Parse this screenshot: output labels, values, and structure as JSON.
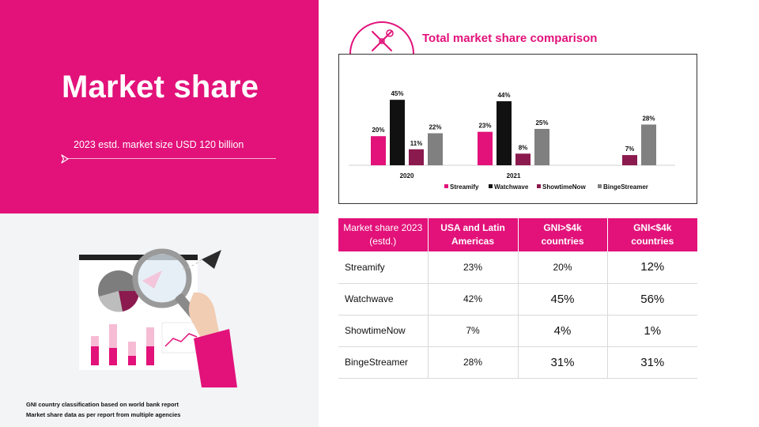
{
  "hero": {
    "title": "Market share",
    "subtitle": "2023 estd. market size USD 120 billion"
  },
  "footnotes": [
    "GNI country classification based on world bank report",
    "Market share data as per report from multiple agencies"
  ],
  "colors": {
    "accent": "#e2127a",
    "streamify": "#e2127a",
    "watchwave": "#111111",
    "showtimenow": "#8b1a4e",
    "bingestreamer": "#808080"
  },
  "icons": {
    "badge": "tools-icon"
  },
  "chart_data": {
    "type": "bar",
    "title": "Total market share comparison",
    "categories": [
      "2020",
      "2021",
      ""
    ],
    "series": [
      {
        "name": "Streamify",
        "color": "#e2127a",
        "values": [
          20,
          23,
          null
        ],
        "labels": [
          "20%",
          "23%",
          ""
        ]
      },
      {
        "name": "Watchwave",
        "color": "#111111",
        "values": [
          45,
          44,
          null
        ],
        "labels": [
          "45%",
          "44%",
          ""
        ]
      },
      {
        "name": "ShowtimeNow",
        "color": "#8b1a4e",
        "values": [
          11,
          8,
          7
        ],
        "labels": [
          "11%",
          "8%",
          "7%"
        ]
      },
      {
        "name": "BingeStreamer",
        "color": "#808080",
        "values": [
          22,
          25,
          28
        ],
        "labels": [
          "22%",
          "25%",
          "28%"
        ]
      }
    ],
    "ylim": [
      0,
      50
    ],
    "grid": false,
    "legend": "bottom"
  },
  "table": {
    "headers": [
      "Market share 2023 (estd.)",
      "USA and Latin Americas",
      "GNI>$4k countries",
      "GNI<$4k countries"
    ],
    "rows": [
      [
        "Streamify",
        "23%",
        "20%",
        "12%"
      ],
      [
        "Watchwave",
        "42%",
        "45%",
        "56%"
      ],
      [
        "ShowtimeNow",
        "7%",
        "4%",
        "1%"
      ],
      [
        "BingeStreamer",
        "28%",
        "31%",
        "31%"
      ]
    ]
  }
}
